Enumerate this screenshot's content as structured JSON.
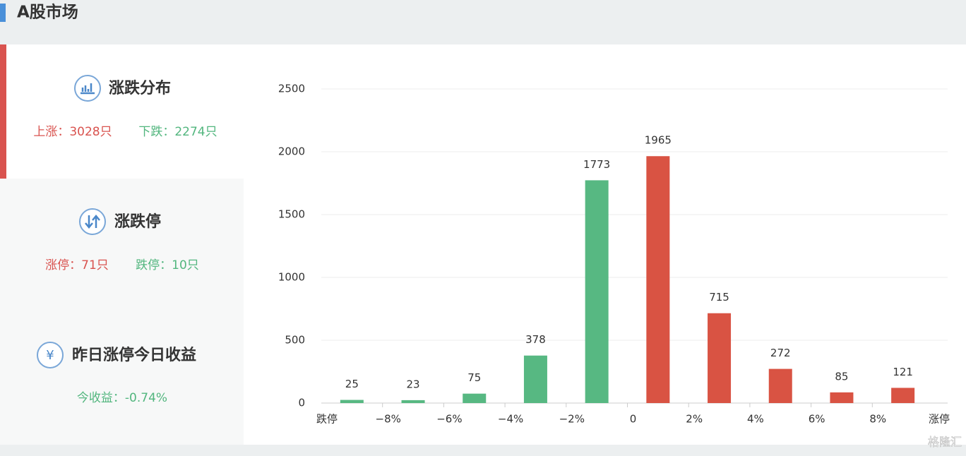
{
  "header": {
    "title": "A股市场"
  },
  "panels": [
    {
      "title": "涨跌分布",
      "stats": [
        {
          "text": "上涨：3028只",
          "color": "#d9534f"
        },
        {
          "text": "下跌：2274只",
          "color": "#52b67e"
        }
      ]
    },
    {
      "title": "涨跌停",
      "stats": [
        {
          "text": "涨停：71只",
          "color": "#d9534f"
        },
        {
          "text": "跌停：10只",
          "color": "#52b67e"
        }
      ]
    },
    {
      "title": "昨日涨停今日收益",
      "stats": [
        {
          "text": "今收益：-0.74%",
          "color": "#52b67e"
        }
      ]
    }
  ],
  "chart_data": {
    "type": "bar",
    "x_labels": [
      "跌停",
      "−8%",
      "−6%",
      "−4%",
      "−2%",
      "0",
      "2%",
      "4%",
      "6%",
      "8%",
      "涨停"
    ],
    "values": [
      25,
      23,
      75,
      378,
      1773,
      1965,
      715,
      272,
      85,
      121
    ],
    "colors": [
      "#57b882",
      "#57b882",
      "#57b882",
      "#57b882",
      "#57b882",
      "#d95343",
      "#d95343",
      "#d95343",
      "#d95343",
      "#d95343"
    ],
    "ylim": [
      0,
      2500
    ],
    "yticks": [
      0,
      500,
      1000,
      1500,
      2000,
      2500
    ],
    "grid": true
  },
  "watermark": "格隆汇"
}
